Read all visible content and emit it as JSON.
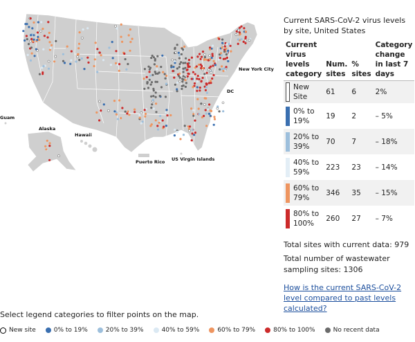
{
  "panel": {
    "title": "Current SARS-CoV-2 virus levels by site, United States",
    "headers": {
      "category": "Current virus levels category",
      "num": "Num. sites",
      "pct": "% sites",
      "change": "Category change in last 7 days"
    },
    "rows": [
      {
        "label": "New Site",
        "num": "61",
        "pct": "6",
        "change": "2%",
        "color": "#ffffff"
      },
      {
        "label": "0% to 19%",
        "num": "19",
        "pct": "2",
        "change": "– 5%",
        "color": "#3a6fb0"
      },
      {
        "label": "20% to 39%",
        "num": "70",
        "pct": "7",
        "change": "– 18%",
        "color": "#9dbfdc"
      },
      {
        "label": "40% to 59%",
        "num": "223",
        "pct": "23",
        "change": "– 14%",
        "color": "#e3eef6"
      },
      {
        "label": "60% to 79%",
        "num": "346",
        "pct": "35",
        "change": "– 15%",
        "color": "#ee9560"
      },
      {
        "label": "80% to 100%",
        "num": "260",
        "pct": "27",
        "change": "– 7%",
        "color": "#cc2b2b"
      }
    ],
    "total_current": "Total sites with current data: 979",
    "total_sampling": "Total number of wastewater sampling sites: 1306",
    "link": "How is the current SARS-CoV-2 level compared to past levels calculated?"
  },
  "map": {
    "labels": {
      "new_york": "New York City",
      "dc": "DC",
      "guam": "Guam",
      "alaska": "Alaska",
      "hawaii": "Hawaii",
      "puerto_rico": "Puerto Rico",
      "usvi": "US Virgin Islands"
    }
  },
  "instructions": "Select legend categories to filter points on the map.",
  "legend": [
    {
      "label": "New site",
      "color": "#ffffff",
      "kind": "new"
    },
    {
      "label": "0% to 19%",
      "color": "#3a6fb0"
    },
    {
      "label": "20% to 39%",
      "color": "#9dbfdc"
    },
    {
      "label": "40% to 59%",
      "color": "#dbe9f3"
    },
    {
      "label": "60% to 79%",
      "color": "#ee9560"
    },
    {
      "label": "80% to 100%",
      "color": "#cc2b2b"
    },
    {
      "label": "No recent data",
      "color": "#6b6b6b"
    }
  ],
  "colors": {
    "land": "#cfcfcf",
    "border": "#ffffff",
    "link": "#1a4d9c"
  }
}
